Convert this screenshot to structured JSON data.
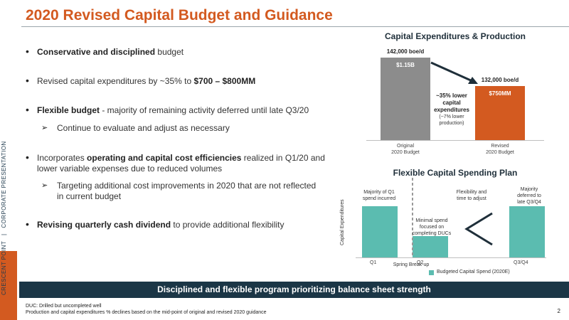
{
  "sidebar": {
    "brand": "CRESCENT POINT",
    "sep": "|",
    "section": "CORPORATE PRESENTATION"
  },
  "title": "2020 Revised Capital Budget and Guidance",
  "bullets": [
    {
      "bold": "Conservative and disciplined",
      "rest": " budget"
    },
    {
      "pre": "Revised capital expenditures by ~35% to ",
      "bold": "$700 – $800MM"
    },
    {
      "bold": "Flexible budget",
      "rest": " - majority of remaining activity deferred until late Q3/20"
    },
    {
      "sub": "Continue to evaluate and adjust as necessary"
    },
    {
      "pre": "Incorporates ",
      "bold": "operating and capital cost efficiencies",
      "rest": " realized in Q1/20 and lower variable expenses due to reduced volumes"
    },
    {
      "sub": "Targeting additional cost improvements in 2020 that are not reflected in current budget"
    },
    {
      "bold": "Revising quarterly cash dividend",
      "rest": " to provide additional flexibility"
    }
  ],
  "chart_data": [
    {
      "type": "bar",
      "title": "Capital Expenditures & Production",
      "categories": [
        "Original 2020 Budget",
        "Revised 2020 Budget"
      ],
      "cat_line1": [
        "Original",
        "Revised"
      ],
      "cat_line2": [
        "2020 Budget",
        "2020 Budget"
      ],
      "values": [
        1150,
        750
      ],
      "bar_labels": [
        "$1.15B",
        "$750MM"
      ],
      "production_labels": [
        "142,000 boe/d",
        "132,000 boe/d"
      ],
      "colors": [
        "#8c8c8c",
        "#d35a20"
      ],
      "ylim": [
        0,
        1150
      ],
      "annotation": {
        "bold1": "~35% lower",
        "bold2": "capital",
        "bold3": "expenditures",
        "rest1": "(~7% lower",
        "rest2": "production)"
      }
    },
    {
      "type": "bar",
      "title": "Flexible Capital Spending Plan",
      "ylabel": "Capital Expenditures",
      "categories": [
        "Q1",
        "Q2",
        "Q3/Q4"
      ],
      "values": [
        1.0,
        0.42,
        1.0
      ],
      "ylim": [
        0,
        1.0
      ],
      "color": "#5bbcb0",
      "legend": "Budgeted Capital Spend (2020E)",
      "legend_position": "bottom",
      "divider_label": "Spring Break-up",
      "notes": {
        "q1": [
          "Majority of Q1",
          "spend incurred"
        ],
        "q2": [
          "Minimal spend",
          "focused on",
          "completing DUCs"
        ],
        "flex": [
          "Flexibility and",
          "time to adjust"
        ],
        "q34": [
          "Majority",
          "deferred to",
          "late Q3/Q4"
        ]
      }
    }
  ],
  "banner": "Disciplined and flexible program prioritizing balance sheet strength",
  "footnotes": [
    "DUC: Drilled but uncompleted well",
    "Production and capital expenditures % declines based on the mid-point of original and revised 2020 guidance"
  ],
  "page_number": "2"
}
